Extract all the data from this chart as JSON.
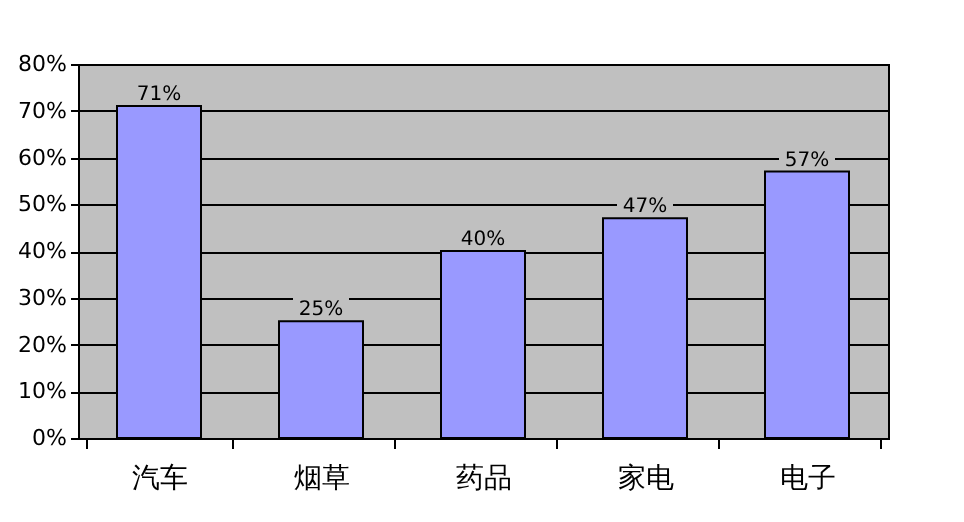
{
  "chart_data": {
    "type": "bar",
    "categories": [
      "汽车",
      "烟草",
      "药品",
      "家电",
      "电子"
    ],
    "values": [
      71,
      25,
      40,
      47,
      57
    ],
    "value_labels": [
      "71%",
      "25%",
      "40%",
      "47%",
      "57%"
    ],
    "color": "#9999ff",
    "ylim": [
      0,
      80
    ],
    "yticks": [
      {
        "value": 0,
        "label": "0%"
      },
      {
        "value": 10,
        "label": "10%"
      },
      {
        "value": 20,
        "label": "20%"
      },
      {
        "value": 30,
        "label": "30%"
      },
      {
        "value": 40,
        "label": "40%"
      },
      {
        "value": 50,
        "label": "50%"
      },
      {
        "value": 60,
        "label": "60%"
      },
      {
        "value": 70,
        "label": "70%"
      },
      {
        "value": 80,
        "label": "80%"
      }
    ],
    "grid": "y"
  }
}
